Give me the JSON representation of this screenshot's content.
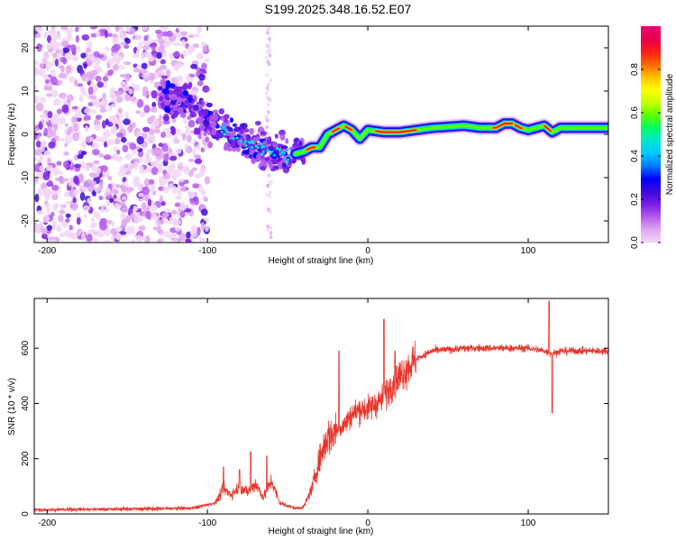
{
  "title": "S199.2025.348.16.52.E07",
  "colors": {
    "line": "#e8352b",
    "colorbar": [
      "#f2d6f7",
      "#e0a8f0",
      "#b35cf0",
      "#7a1fe6",
      "#3b0ad9",
      "#0000ff",
      "#0079ff",
      "#00c8ff",
      "#00e6d2",
      "#00ff66",
      "#5cff00",
      "#c8ff00",
      "#ffff00",
      "#ffbf00",
      "#ff6600",
      "#ff1a1a",
      "#e6004d",
      "#f20073"
    ]
  },
  "chart_data": [
    {
      "type": "heatmap",
      "xlabel": "Height of straight line (km)",
      "ylabel": "Frequency (Hz)",
      "xlim": [
        -208,
        150
      ],
      "ylim": [
        -25,
        25
      ],
      "xticks": [
        -200,
        -100,
        0,
        100
      ],
      "yticks": [
        -20,
        -10,
        0,
        10,
        20
      ],
      "ridge_x": [
        -110,
        -100,
        -90,
        -80,
        -70,
        -60,
        -50,
        -40,
        -35,
        -30,
        -25,
        -20,
        -15,
        -10,
        -5,
        0,
        10,
        20,
        40,
        60,
        70,
        80,
        85,
        90,
        95,
        100,
        105,
        110,
        115,
        120,
        130,
        140,
        150
      ],
      "ridge_y": [
        5,
        3,
        1,
        -1,
        -3,
        -4,
        -5,
        -4,
        -3,
        -3,
        0,
        1,
        2,
        1,
        -1,
        1,
        0.5,
        0.5,
        1.5,
        2,
        1.5,
        1.5,
        2.5,
        2.5,
        1.5,
        1,
        1.5,
        2,
        0.5,
        1.5,
        1.5,
        1.5,
        1.5
      ],
      "colorbar": {
        "label": "Normalized spectral amplitude",
        "range": [
          0,
          1
        ],
        "ticks": [
          "0.0",
          "0.2",
          "0.4",
          "0.6",
          "0.8"
        ]
      }
    },
    {
      "type": "line",
      "xlabel": "Height of straight line (km)",
      "ylabel": "SNR (10 * v/v)",
      "xlim": [
        -208,
        150
      ],
      "ylim": [
        0,
        780
      ],
      "xticks": [
        -200,
        -100,
        0,
        100
      ],
      "yticks": [
        0,
        200,
        400,
        600
      ],
      "envelope_x": [
        -208,
        -110,
        -95,
        -90,
        -85,
        -80,
        -75,
        -70,
        -65,
        -60,
        -55,
        -50,
        -45,
        -40,
        -35,
        -30,
        -25,
        -20,
        -15,
        -10,
        -5,
        0,
        5,
        10,
        15,
        20,
        25,
        30,
        40,
        50,
        60,
        80,
        100,
        110,
        115,
        120,
        150
      ],
      "envelope_y": [
        15,
        20,
        40,
        90,
        70,
        100,
        80,
        110,
        60,
        120,
        40,
        30,
        20,
        25,
        90,
        200,
        280,
        300,
        320,
        360,
        380,
        380,
        400,
        420,
        470,
        500,
        530,
        560,
        590,
        595,
        600,
        600,
        600,
        590,
        580,
        590,
        590
      ],
      "spikes": [
        {
          "x": -90,
          "y": 170
        },
        {
          "x": -80,
          "y": 160
        },
        {
          "x": -73,
          "y": 225
        },
        {
          "x": -63,
          "y": 210
        },
        {
          "x": -18,
          "y": 590
        },
        {
          "x": 10,
          "y": 705
        },
        {
          "x": 17,
          "y": 590
        },
        {
          "x": 113,
          "y": 770
        },
        {
          "x": 115,
          "y": 365
        }
      ]
    }
  ]
}
